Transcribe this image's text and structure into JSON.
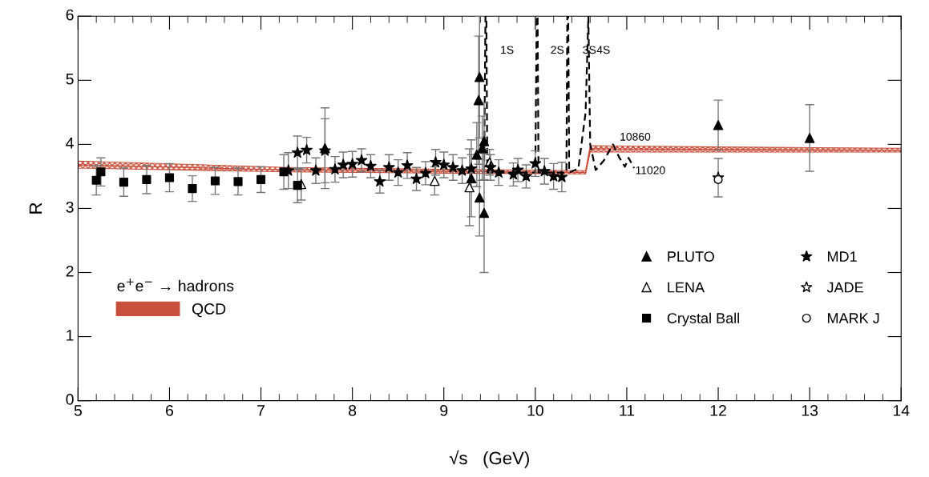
{
  "chart_data": {
    "type": "scatter",
    "xlabel": "√s   (GeV)",
    "ylabel": "R",
    "xlim": [
      5,
      14
    ],
    "xticks": [
      5,
      6,
      7,
      8,
      9,
      10,
      11,
      12,
      13,
      14
    ],
    "ylim": [
      0,
      6
    ],
    "yticks": [
      0,
      1,
      2,
      3,
      4,
      5,
      6
    ],
    "grid": false,
    "legend": "bottom",
    "legend_title": "e$^{+}$e$^{−}$ → hadrons",
    "series": [
      {
        "name": "QCD",
        "type": "line",
        "color": "#c8503c",
        "x": [
          5,
          7.3,
          9,
          10.55,
          10.6,
          12,
          14
        ],
        "values": [
          3.68,
          3.6,
          3.58,
          3.56,
          3.93,
          3.92,
          3.91
        ],
        "lower": [
          3.63,
          3.57,
          3.55,
          3.54,
          3.88,
          3.88,
          3.88
        ],
        "upper": [
          3.74,
          3.64,
          3.61,
          3.59,
          3.98,
          3.96,
          3.94
        ]
      },
      {
        "type": "line",
        "line_style": "dashed",
        "color": "#000000",
        "x": [
          9.44,
          9.455,
          9.465,
          9.475,
          10.0,
          10.015,
          10.025,
          10.035,
          10.34,
          10.35,
          10.36,
          10.37,
          10.47,
          10.55,
          10.58,
          10.6,
          10.66,
          10.75,
          10.85,
          10.92,
          10.98,
          11.02,
          11.08
        ],
        "values": [
          3.56,
          6,
          6,
          3.56,
          3.56,
          6,
          6,
          3.56,
          3.56,
          6,
          6,
          3.56,
          3.62,
          4.5,
          6,
          4.0,
          3.6,
          3.75,
          4.0,
          3.79,
          3.65,
          3.79,
          3.63
        ]
      },
      {
        "name": "PLUTO",
        "marker": "triangle",
        "color": "#000000",
        "x": [
          7.7,
          9.3,
          9.36,
          9.38,
          9.39,
          9.39,
          9.42,
          9.44,
          9.44,
          12,
          13
        ],
        "values": [
          3.94,
          3.47,
          3.84,
          4.69,
          5.05,
          3.17,
          3.94,
          4.05,
          2.93,
          4.3,
          4.1
        ],
        "errors": [
          0.63,
          0.6,
          0.5,
          1.0,
          0.95,
          0.6,
          0.5,
          0.6,
          0.93,
          0.39,
          0.52
        ]
      },
      {
        "name": "LENA",
        "marker": "triangle",
        "color": "#ffffff",
        "x": [
          7.44,
          8.9,
          9.28,
          9.5
        ],
        "values": [
          3.38,
          3.43,
          3.33,
          3.72
        ],
        "errors": [
          0.25,
          0.22,
          0.6,
          0.2
        ]
      },
      {
        "name": "Crystal Ball",
        "marker": "square",
        "color": "#000000",
        "x": [
          5.2,
          5.25,
          5.5,
          5.75,
          6.0,
          6.25,
          6.5,
          6.75,
          7.0,
          7.25,
          7.4
        ],
        "values": [
          3.44,
          3.57,
          3.41,
          3.45,
          3.48,
          3.31,
          3.43,
          3.42,
          3.45,
          3.57,
          3.36
        ],
        "errors": [
          0.23,
          0.22,
          0.22,
          0.22,
          0.22,
          0.2,
          0.21,
          0.21,
          0.2,
          0.27,
          0.27
        ]
      },
      {
        "name": "MD1",
        "marker": "star",
        "color": "#000000",
        "x": [
          7.3,
          7.4,
          7.5,
          7.6,
          7.7,
          7.81,
          7.9,
          8.0,
          8.1,
          8.2,
          8.3,
          8.4,
          8.5,
          8.6,
          8.7,
          8.8,
          8.91,
          9.0,
          9.1,
          9.2,
          9.3,
          9.51,
          9.6,
          9.76,
          9.81,
          9.9,
          10.0,
          10.1,
          10.2,
          10.29
        ],
        "values": [
          3.59,
          3.87,
          3.91,
          3.59,
          3.9,
          3.61,
          3.68,
          3.69,
          3.75,
          3.66,
          3.42,
          3.64,
          3.56,
          3.67,
          3.46,
          3.55,
          3.72,
          3.68,
          3.64,
          3.59,
          3.62,
          3.64,
          3.56,
          3.53,
          3.6,
          3.5,
          3.7,
          3.58,
          3.5,
          3.49
        ],
        "errors": [
          0.28,
          0.26,
          0.2,
          0.2,
          0.5,
          0.2,
          0.2,
          0.2,
          0.18,
          0.18,
          0.18,
          0.2,
          0.2,
          0.2,
          0.18,
          0.18,
          0.2,
          0.2,
          0.2,
          0.2,
          0.22,
          0.2,
          0.2,
          0.18,
          0.18,
          0.18,
          0.2,
          0.2,
          0.2,
          0.23
        ]
      },
      {
        "name": "JADE",
        "marker": "star",
        "color": "#ffffff",
        "x": [
          12
        ],
        "values": [
          3.48
        ],
        "errors": [
          0.3
        ]
      },
      {
        "name": "MARK J",
        "marker": "circle",
        "color": "#ffffff",
        "x": [
          12
        ],
        "values": [
          3.45
        ]
      }
    ],
    "annotations": [
      "1S",
      "2S",
      "3S",
      "4S",
      {
        "text": "10860",
        "x": 10.85,
        "y": 4.0
      },
      {
        "text": "11020",
        "x": 11.02,
        "y": 3.79
      }
    ]
  }
}
